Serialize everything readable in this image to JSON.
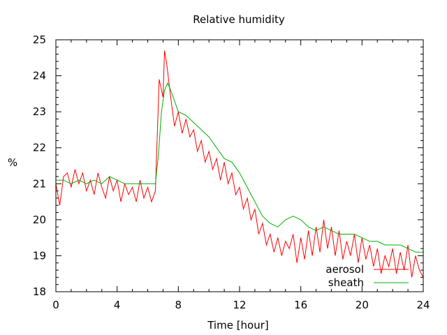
{
  "chart_data": {
    "type": "line",
    "title": "Relative humidity",
    "xlabel": "Time [hour]",
    "ylabel": "%",
    "xlim": [
      0,
      24
    ],
    "ylim": [
      18,
      25
    ],
    "xticks": [
      "0",
      "4",
      "8",
      "12",
      "16",
      "20",
      "24"
    ],
    "yticks": [
      "18",
      "19",
      "20",
      "21",
      "22",
      "23",
      "24",
      "25"
    ],
    "grid": false,
    "legend_position": "bottom-right",
    "series": [
      {
        "name": "aerosol",
        "color": "#ff0000",
        "x": [
          0,
          0.25,
          0.5,
          0.75,
          1,
          1.25,
          1.5,
          1.75,
          2,
          2.25,
          2.5,
          2.75,
          3,
          3.25,
          3.5,
          3.75,
          4,
          4.25,
          4.5,
          4.75,
          5,
          5.25,
          5.5,
          5.75,
          6,
          6.25,
          6.5,
          6.75,
          7,
          7.1,
          7.25,
          7.5,
          7.75,
          8,
          8.25,
          8.5,
          8.75,
          9,
          9.25,
          9.5,
          9.75,
          10,
          10.25,
          10.5,
          10.75,
          11,
          11.25,
          11.5,
          11.75,
          12,
          12.25,
          12.5,
          12.75,
          13,
          13.25,
          13.5,
          13.75,
          14,
          14.25,
          14.5,
          14.75,
          15,
          15.25,
          15.5,
          15.75,
          16,
          16.25,
          16.5,
          16.75,
          17,
          17.25,
          17.5,
          17.75,
          18,
          18.25,
          18.5,
          18.75,
          19,
          19.25,
          19.5,
          19.75,
          20,
          20.25,
          20.5,
          20.75,
          21,
          21.25,
          21.5,
          21.75,
          22,
          22.25,
          22.5,
          22.75,
          23,
          23.25,
          23.5,
          23.75,
          24
        ],
        "y": [
          21.0,
          20.4,
          21.2,
          21.3,
          20.9,
          21.4,
          21.0,
          21.3,
          20.8,
          21.1,
          20.7,
          21.3,
          20.9,
          20.6,
          21.2,
          20.8,
          21.1,
          20.5,
          21.0,
          20.7,
          20.9,
          20.5,
          21.1,
          20.6,
          20.9,
          20.5,
          20.8,
          23.9,
          23.4,
          24.7,
          24.3,
          23.4,
          22.6,
          23.0,
          22.4,
          22.8,
          22.3,
          22.5,
          21.9,
          22.2,
          21.6,
          21.9,
          21.4,
          21.7,
          21.1,
          21.6,
          21.0,
          21.3,
          20.7,
          20.9,
          20.3,
          20.6,
          20.0,
          20.3,
          19.6,
          19.9,
          19.3,
          19.6,
          19.1,
          19.5,
          19.0,
          19.4,
          19.2,
          19.6,
          18.8,
          19.5,
          18.9,
          19.7,
          19.0,
          19.8,
          19.1,
          20.0,
          19.2,
          19.8,
          19.0,
          19.7,
          18.9,
          19.4,
          19.0,
          19.6,
          18.8,
          19.5,
          18.9,
          19.3,
          18.7,
          19.2,
          18.5,
          19.0,
          18.7,
          19.2,
          18.5,
          19.1,
          18.6,
          19.3,
          18.4,
          19.0,
          18.6,
          18.4
        ]
      },
      {
        "name": "sheath",
        "color": "#00b000",
        "x": [
          0,
          0.5,
          1,
          1.5,
          2,
          2.5,
          3,
          3.5,
          4,
          4.5,
          5,
          5.5,
          6,
          6.5,
          6.7,
          6.9,
          7.1,
          7.3,
          7.5,
          7.75,
          8,
          8.5,
          9,
          9.5,
          10,
          10.5,
          11,
          11.5,
          12,
          12.5,
          13,
          13.5,
          14,
          14.5,
          15,
          15.5,
          16,
          16.5,
          17,
          17.5,
          18,
          18.5,
          19,
          19.5,
          20,
          20.5,
          21,
          21.5,
          22,
          22.5,
          23,
          23.5,
          24
        ],
        "y": [
          21.1,
          21.1,
          21.0,
          21.1,
          21.0,
          21.1,
          21.0,
          21.2,
          21.1,
          21.0,
          21.0,
          21.0,
          21.0,
          21.0,
          21.8,
          23.0,
          23.6,
          23.8,
          23.6,
          23.3,
          23.0,
          22.9,
          22.7,
          22.5,
          22.3,
          22.0,
          21.7,
          21.6,
          21.3,
          20.9,
          20.5,
          20.1,
          19.9,
          19.8,
          20.0,
          20.1,
          20.0,
          19.8,
          19.7,
          19.8,
          19.7,
          19.6,
          19.6,
          19.6,
          19.5,
          19.4,
          19.4,
          19.3,
          19.3,
          19.3,
          19.2,
          19.1,
          19.1
        ]
      }
    ]
  }
}
